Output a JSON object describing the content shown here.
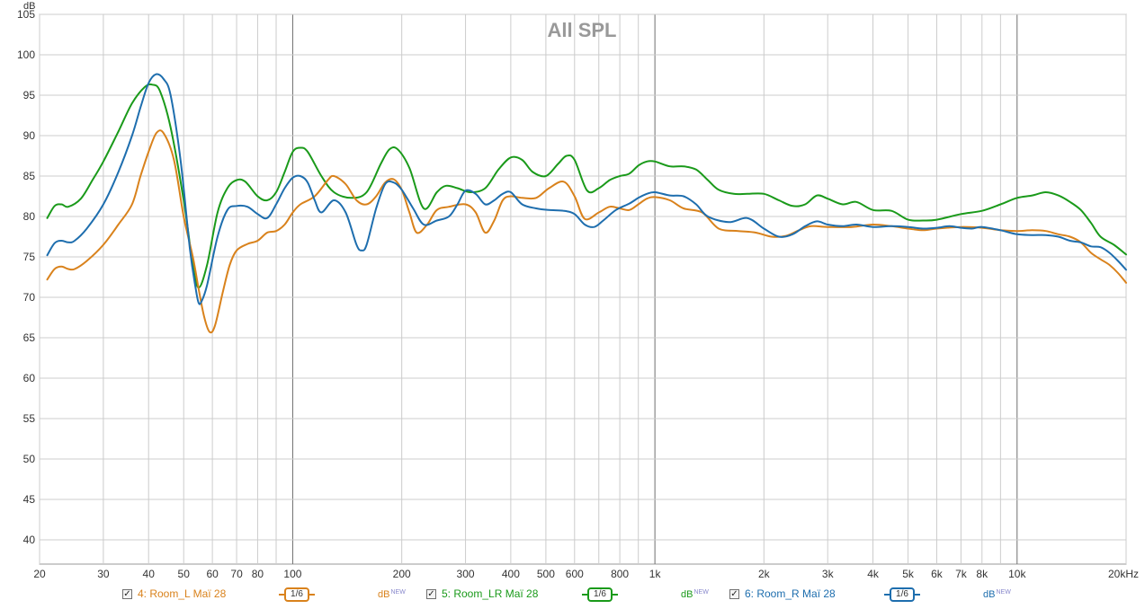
{
  "chart_data": {
    "type": "line",
    "title": "All SPL",
    "y_unit": "dB",
    "x_scale": "log",
    "xlim": [
      20,
      20000
    ],
    "ylim": [
      37,
      105
    ],
    "y_ticks": [
      40,
      45,
      50,
      55,
      60,
      65,
      70,
      75,
      80,
      85,
      90,
      95,
      100,
      105
    ],
    "x_tick_labels": [
      {
        "v": 20,
        "label": "20"
      },
      {
        "v": 30,
        "label": "30"
      },
      {
        "v": 40,
        "label": "40"
      },
      {
        "v": 50,
        "label": "50"
      },
      {
        "v": 60,
        "label": "60"
      },
      {
        "v": 70,
        "label": "70"
      },
      {
        "v": 80,
        "label": "80"
      },
      {
        "v": 100,
        "label": "100"
      },
      {
        "v": 200,
        "label": "200"
      },
      {
        "v": 300,
        "label": "300"
      },
      {
        "v": 400,
        "label": "400"
      },
      {
        "v": 500,
        "label": "500"
      },
      {
        "v": 600,
        "label": "600"
      },
      {
        "v": 800,
        "label": "800"
      },
      {
        "v": 1000,
        "label": "1k"
      },
      {
        "v": 2000,
        "label": "2k"
      },
      {
        "v": 3000,
        "label": "3k"
      },
      {
        "v": 4000,
        "label": "4k"
      },
      {
        "v": 5000,
        "label": "5k"
      },
      {
        "v": 6000,
        "label": "6k"
      },
      {
        "v": 7000,
        "label": "7k"
      },
      {
        "v": 8000,
        "label": "8k"
      },
      {
        "v": 10000,
        "label": "10k"
      },
      {
        "v": 20000,
        "label": "20kHz"
      }
    ],
    "grid": true,
    "legend_position": "bottom",
    "series": [
      {
        "name": "5: Room_LR Maï 28",
        "color": "#1a9a1a",
        "points": [
          [
            21,
            79.8
          ],
          [
            22,
            81.3
          ],
          [
            23,
            81.5
          ],
          [
            24,
            81.2
          ],
          [
            26,
            82.2
          ],
          [
            28,
            84.5
          ],
          [
            30,
            86.8
          ],
          [
            33,
            90.5
          ],
          [
            36,
            94
          ],
          [
            39,
            96
          ],
          [
            41,
            96.3
          ],
          [
            43,
            95.5
          ],
          [
            46,
            91
          ],
          [
            50,
            82
          ],
          [
            53,
            74
          ],
          [
            55,
            71.2
          ],
          [
            58,
            74
          ],
          [
            62,
            80.5
          ],
          [
            66,
            83.5
          ],
          [
            70,
            84.5
          ],
          [
            74,
            84.3
          ],
          [
            80,
            82.5
          ],
          [
            85,
            82
          ],
          [
            90,
            83
          ],
          [
            95,
            85.5
          ],
          [
            100,
            88
          ],
          [
            105,
            88.5
          ],
          [
            110,
            88
          ],
          [
            120,
            85
          ],
          [
            130,
            83
          ],
          [
            145,
            82.3
          ],
          [
            160,
            83
          ],
          [
            175,
            86.5
          ],
          [
            185,
            88.3
          ],
          [
            195,
            88.3
          ],
          [
            210,
            86
          ],
          [
            230,
            81
          ],
          [
            250,
            83
          ],
          [
            265,
            83.8
          ],
          [
            285,
            83.5
          ],
          [
            310,
            83
          ],
          [
            340,
            83.5
          ],
          [
            370,
            85.8
          ],
          [
            400,
            87.3
          ],
          [
            430,
            87
          ],
          [
            460,
            85.5
          ],
          [
            500,
            85
          ],
          [
            540,
            86.5
          ],
          [
            570,
            87.5
          ],
          [
            600,
            87
          ],
          [
            650,
            83.2
          ],
          [
            700,
            83.5
          ],
          [
            750,
            84.5
          ],
          [
            800,
            85
          ],
          [
            850,
            85.3
          ],
          [
            900,
            86.3
          ],
          [
            950,
            86.8
          ],
          [
            1000,
            86.8
          ],
          [
            1100,
            86.2
          ],
          [
            1200,
            86.2
          ],
          [
            1300,
            85.8
          ],
          [
            1400,
            84.5
          ],
          [
            1500,
            83.3
          ],
          [
            1650,
            82.8
          ],
          [
            1800,
            82.8
          ],
          [
            2000,
            82.8
          ],
          [
            2200,
            82
          ],
          [
            2400,
            81.3
          ],
          [
            2600,
            81.5
          ],
          [
            2800,
            82.6
          ],
          [
            3000,
            82.2
          ],
          [
            3300,
            81.5
          ],
          [
            3600,
            81.8
          ],
          [
            4000,
            80.8
          ],
          [
            4500,
            80.7
          ],
          [
            5000,
            79.6
          ],
          [
            5500,
            79.5
          ],
          [
            6000,
            79.6
          ],
          [
            7000,
            80.3
          ],
          [
            8000,
            80.7
          ],
          [
            9000,
            81.5
          ],
          [
            10000,
            82.3
          ],
          [
            11000,
            82.6
          ],
          [
            12000,
            83
          ],
          [
            13000,
            82.6
          ],
          [
            14000,
            81.8
          ],
          [
            15000,
            80.8
          ],
          [
            16000,
            79.2
          ],
          [
            17000,
            77.5
          ],
          [
            18500,
            76.5
          ],
          [
            20000,
            75.3
          ]
        ]
      },
      {
        "name": "4: Room_L Maï 28",
        "color": "#d9821c",
        "points": [
          [
            21,
            72.2
          ],
          [
            22,
            73.5
          ],
          [
            23,
            73.8
          ],
          [
            24,
            73.5
          ],
          [
            25,
            73.5
          ],
          [
            27,
            74.5
          ],
          [
            30,
            76.5
          ],
          [
            33,
            79
          ],
          [
            36,
            81.5
          ],
          [
            38,
            85
          ],
          [
            40,
            88
          ],
          [
            42,
            90.3
          ],
          [
            44,
            90.3
          ],
          [
            47,
            87
          ],
          [
            50,
            80
          ],
          [
            53,
            75
          ],
          [
            55,
            71
          ],
          [
            57,
            67.5
          ],
          [
            59,
            65.7
          ],
          [
            61,
            66.5
          ],
          [
            64,
            70.5
          ],
          [
            67,
            74
          ],
          [
            70,
            75.8
          ],
          [
            75,
            76.6
          ],
          [
            80,
            77
          ],
          [
            85,
            78
          ],
          [
            90,
            78.2
          ],
          [
            95,
            79
          ],
          [
            100,
            80.5
          ],
          [
            105,
            81.5
          ],
          [
            115,
            82.5
          ],
          [
            125,
            84.5
          ],
          [
            130,
            85
          ],
          [
            140,
            84
          ],
          [
            150,
            82
          ],
          [
            160,
            81.5
          ],
          [
            170,
            82.5
          ],
          [
            180,
            84.2
          ],
          [
            190,
            84.6
          ],
          [
            200,
            83.3
          ],
          [
            210,
            80.5
          ],
          [
            220,
            78
          ],
          [
            235,
            79
          ],
          [
            250,
            80.8
          ],
          [
            270,
            81.2
          ],
          [
            300,
            81.5
          ],
          [
            320,
            80.5
          ],
          [
            340,
            78
          ],
          [
            360,
            79.5
          ],
          [
            380,
            82
          ],
          [
            400,
            82.5
          ],
          [
            430,
            82.3
          ],
          [
            470,
            82.3
          ],
          [
            510,
            83.5
          ],
          [
            560,
            84.3
          ],
          [
            600,
            82.5
          ],
          [
            640,
            79.7
          ],
          [
            700,
            80.5
          ],
          [
            750,
            81.2
          ],
          [
            800,
            81
          ],
          [
            850,
            80.8
          ],
          [
            900,
            81.5
          ],
          [
            950,
            82.2
          ],
          [
            1000,
            82.4
          ],
          [
            1100,
            82
          ],
          [
            1200,
            81
          ],
          [
            1350,
            80.5
          ],
          [
            1500,
            78.5
          ],
          [
            1700,
            78.2
          ],
          [
            1900,
            78
          ],
          [
            2100,
            77.5
          ],
          [
            2300,
            77.6
          ],
          [
            2500,
            78.3
          ],
          [
            2700,
            78.8
          ],
          [
            3000,
            78.7
          ],
          [
            3500,
            78.7
          ],
          [
            4000,
            79
          ],
          [
            4500,
            78.8
          ],
          [
            5000,
            78.5
          ],
          [
            5500,
            78.3
          ],
          [
            6000,
            78.5
          ],
          [
            7000,
            78.7
          ],
          [
            8000,
            78.6
          ],
          [
            9000,
            78.3
          ],
          [
            10000,
            78.2
          ],
          [
            11000,
            78.3
          ],
          [
            12000,
            78.2
          ],
          [
            13000,
            77.8
          ],
          [
            14000,
            77.5
          ],
          [
            15000,
            76.8
          ],
          [
            16000,
            75.5
          ],
          [
            17000,
            74.7
          ],
          [
            18000,
            74
          ],
          [
            19000,
            73
          ],
          [
            20000,
            71.8
          ]
        ]
      },
      {
        "name": "6: Room_R Maï 28",
        "color": "#1e6eae",
        "points": [
          [
            21,
            75.2
          ],
          [
            22,
            76.7
          ],
          [
            23,
            77
          ],
          [
            24,
            76.8
          ],
          [
            25,
            77
          ],
          [
            27,
            78.5
          ],
          [
            30,
            81.5
          ],
          [
            33,
            85.5
          ],
          [
            36,
            90
          ],
          [
            38,
            93.5
          ],
          [
            40,
            96.5
          ],
          [
            42,
            97.6
          ],
          [
            44,
            97
          ],
          [
            46,
            95
          ],
          [
            49,
            87
          ],
          [
            52,
            76
          ],
          [
            54,
            71
          ],
          [
            55,
            69.3
          ],
          [
            56,
            69.5
          ],
          [
            58,
            71.5
          ],
          [
            62,
            77.5
          ],
          [
            66,
            80.8
          ],
          [
            70,
            81.3
          ],
          [
            75,
            81.2
          ],
          [
            80,
            80.3
          ],
          [
            85,
            79.8
          ],
          [
            90,
            81.5
          ],
          [
            95,
            83.5
          ],
          [
            100,
            84.8
          ],
          [
            105,
            85
          ],
          [
            110,
            84.2
          ],
          [
            115,
            82
          ],
          [
            120,
            80.5
          ],
          [
            130,
            82
          ],
          [
            140,
            80.5
          ],
          [
            150,
            76.5
          ],
          [
            155,
            75.8
          ],
          [
            160,
            76.5
          ],
          [
            170,
            81
          ],
          [
            180,
            84
          ],
          [
            190,
            84.2
          ],
          [
            200,
            83.3
          ],
          [
            215,
            81
          ],
          [
            230,
            79
          ],
          [
            250,
            79.5
          ],
          [
            270,
            80
          ],
          [
            285,
            81.5
          ],
          [
            300,
            83.2
          ],
          [
            320,
            82.8
          ],
          [
            340,
            81.5
          ],
          [
            360,
            82
          ],
          [
            380,
            82.8
          ],
          [
            400,
            83
          ],
          [
            430,
            81.5
          ],
          [
            470,
            81
          ],
          [
            510,
            80.8
          ],
          [
            560,
            80.7
          ],
          [
            600,
            80.3
          ],
          [
            640,
            79
          ],
          [
            680,
            78.7
          ],
          [
            720,
            79.5
          ],
          [
            780,
            80.8
          ],
          [
            850,
            81.6
          ],
          [
            900,
            82.3
          ],
          [
            950,
            82.8
          ],
          [
            1000,
            83
          ],
          [
            1100,
            82.6
          ],
          [
            1200,
            82.5
          ],
          [
            1300,
            81.5
          ],
          [
            1400,
            80
          ],
          [
            1600,
            79.3
          ],
          [
            1800,
            79.8
          ],
          [
            2000,
            78.5
          ],
          [
            2200,
            77.5
          ],
          [
            2400,
            77.8
          ],
          [
            2600,
            78.8
          ],
          [
            2800,
            79.4
          ],
          [
            3000,
            79
          ],
          [
            3300,
            78.8
          ],
          [
            3600,
            79
          ],
          [
            4000,
            78.7
          ],
          [
            4500,
            78.8
          ],
          [
            5000,
            78.7
          ],
          [
            5500,
            78.5
          ],
          [
            6000,
            78.6
          ],
          [
            6500,
            78.8
          ],
          [
            7000,
            78.6
          ],
          [
            7500,
            78.5
          ],
          [
            8000,
            78.7
          ],
          [
            9000,
            78.3
          ],
          [
            10000,
            77.8
          ],
          [
            11000,
            77.7
          ],
          [
            12000,
            77.7
          ],
          [
            13000,
            77.5
          ],
          [
            14000,
            77
          ],
          [
            15000,
            76.8
          ],
          [
            16000,
            76.3
          ],
          [
            17000,
            76.2
          ],
          [
            18000,
            75.5
          ],
          [
            19000,
            74.5
          ],
          [
            20000,
            73.4
          ]
        ]
      }
    ]
  },
  "legend": [
    {
      "checked": "✓",
      "label": "4: Room_L Maï 28",
      "smoothing": "1/6",
      "unit": "dB",
      "unit_badge": "NEW",
      "color": "#d9821c"
    },
    {
      "checked": "✓",
      "label": "5: Room_LR Maï 28",
      "smoothing": "1/6",
      "unit": "dB",
      "unit_badge": "NEW",
      "color": "#1a9a1a"
    },
    {
      "checked": "✓",
      "label": "6: Room_R Maï 28",
      "smoothing": "1/6",
      "unit": "dB",
      "unit_badge": "NEW",
      "color": "#1e6eae"
    }
  ]
}
